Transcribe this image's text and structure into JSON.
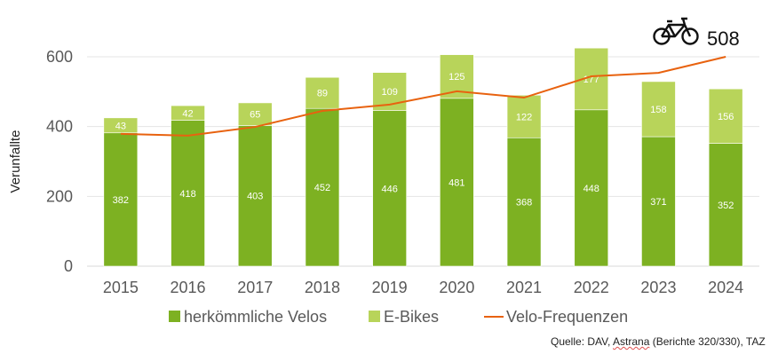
{
  "chart_data": {
    "type": "bar",
    "stacked": true,
    "categories": [
      "2015",
      "2016",
      "2017",
      "2018",
      "2019",
      "2020",
      "2021",
      "2022",
      "2023",
      "2024"
    ],
    "series": [
      {
        "name": "herkömmliche Velos",
        "type": "bar",
        "color": "#7db122",
        "values": [
          382,
          418,
          403,
          452,
          446,
          481,
          368,
          448,
          371,
          352
        ]
      },
      {
        "name": "E-Bikes",
        "type": "bar",
        "color": "#b8d45a",
        "values": [
          43,
          42,
          65,
          89,
          109,
          125,
          122,
          177,
          158,
          156
        ]
      },
      {
        "name": "Velo-Frequenzen",
        "type": "line",
        "color": "#e8620f",
        "values": [
          379,
          374,
          399,
          445,
          463,
          501,
          483,
          544,
          554,
          600
        ]
      }
    ],
    "ylabel": "Verunfallte",
    "ylim": [
      0,
      600
    ],
    "yticks": [
      0,
      200,
      400,
      600
    ],
    "grid": true,
    "legend": "bottom",
    "annotation": {
      "icon": "bicycle-icon",
      "text": "508"
    }
  },
  "source": {
    "prefix": "Quelle: DAV, ",
    "underlined": "Astrana",
    "suffix": " (Berichte 320/330), TAZ"
  }
}
